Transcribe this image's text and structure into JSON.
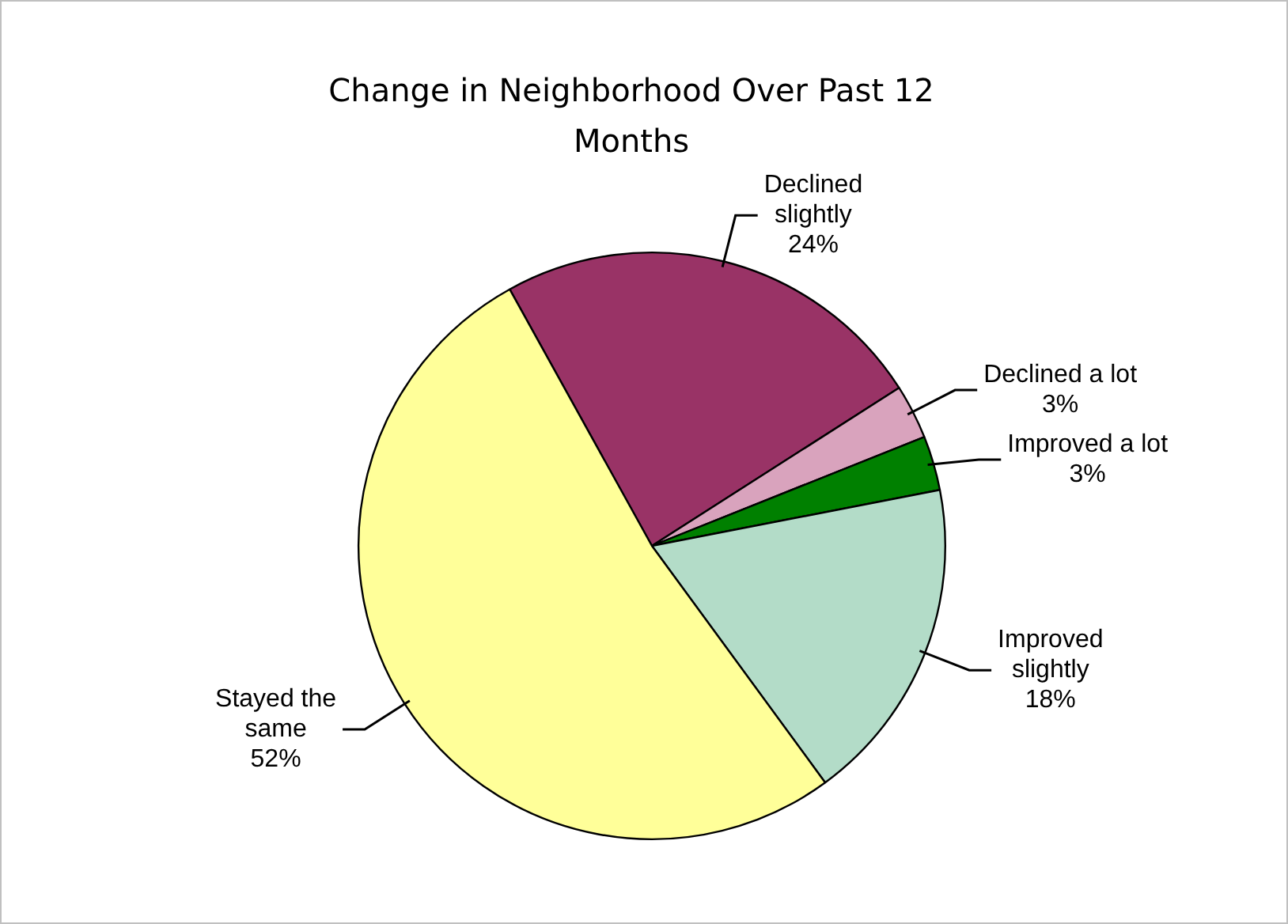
{
  "chart_data": {
    "type": "pie",
    "title": "Change in Neighborhood Over Past 12 Months",
    "categories": [
      "Declined slightly",
      "Declined a lot",
      "Improved a lot",
      "Improved slightly",
      "Stayed the same"
    ],
    "values": [
      24,
      3,
      3,
      18,
      52
    ],
    "colors": [
      "#993366",
      "#d9a3bd",
      "#008000",
      "#b3dcc8",
      "#ffff99"
    ],
    "value_labels": [
      "24%",
      "3%",
      "3%",
      "18%",
      "52%"
    ],
    "legend": false
  }
}
